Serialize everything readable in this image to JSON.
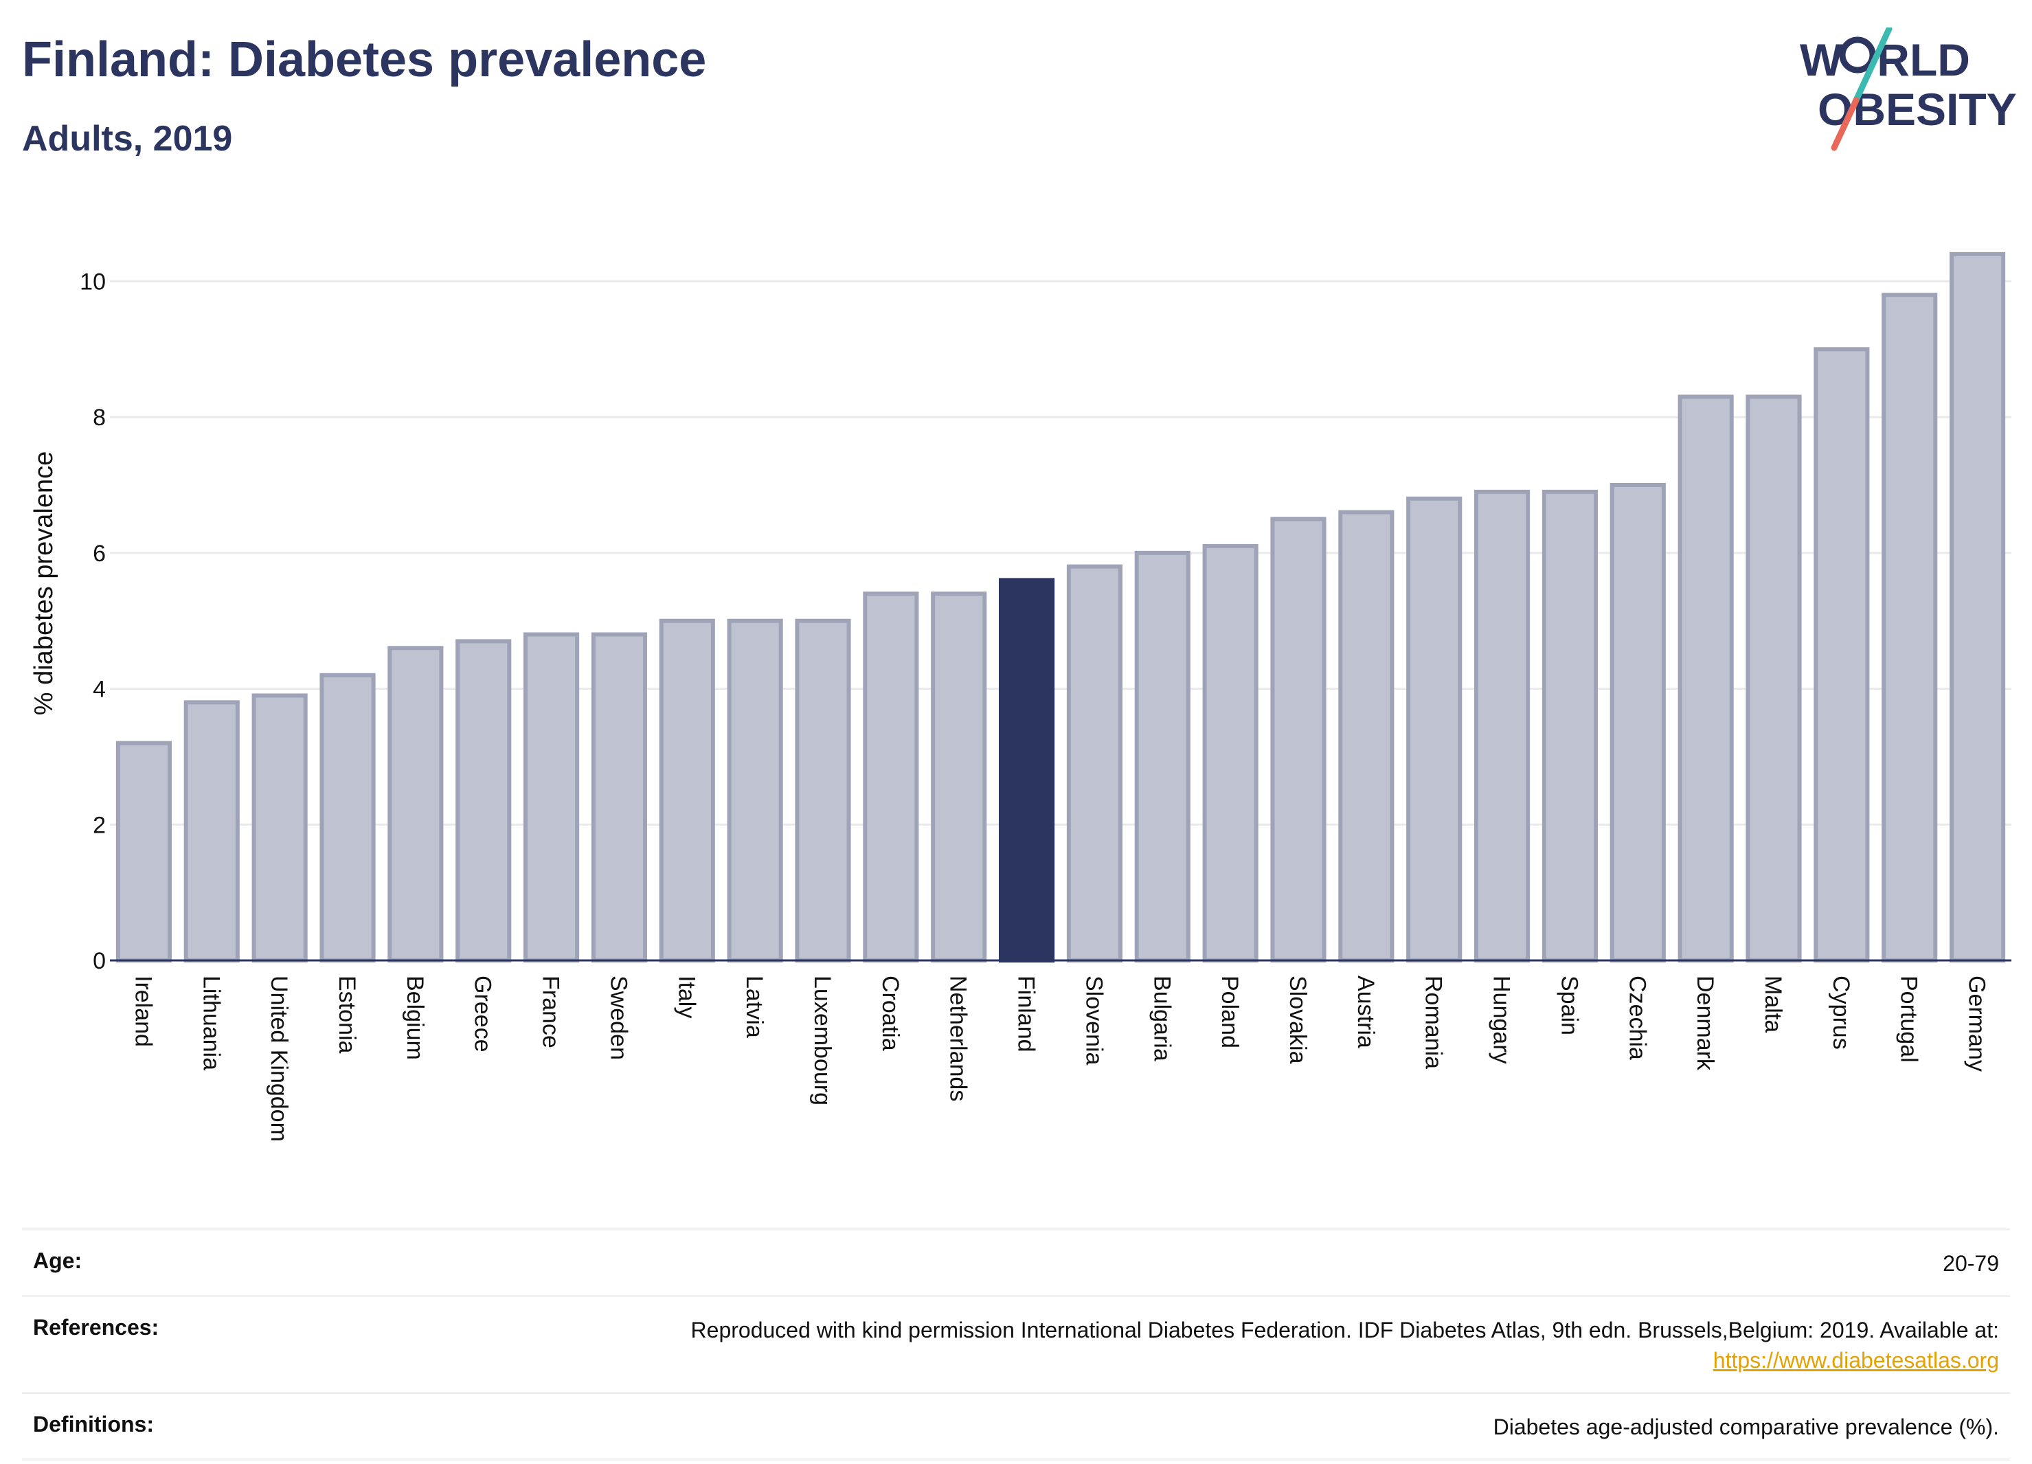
{
  "header": {
    "title": "Finland: Diabetes prevalence",
    "subtitle": "Adults, 2019"
  },
  "logo": {
    "line1_a": "W",
    "line1_b": "RLD",
    "line2_a": "O",
    "line2_b": "BESITY"
  },
  "colors": {
    "bar": "#bfc2d0",
    "bar_border": "#9ea3b8",
    "highlight": "#2b3560",
    "logo_teal": "#3cb9b0",
    "logo_red": "#e8695a"
  },
  "chart_data": {
    "type": "bar",
    "ylabel": "% diabetes prevalence",
    "xlabel": "",
    "ylim": [
      0,
      10.5
    ],
    "yticks": [
      0,
      2,
      4,
      6,
      8,
      10
    ],
    "grid": true,
    "highlight": "Finland",
    "categories": [
      "Ireland",
      "Lithuania",
      "United Kingdom",
      "Estonia",
      "Belgium",
      "Greece",
      "France",
      "Sweden",
      "Italy",
      "Latvia",
      "Luxembourg",
      "Croatia",
      "Netherlands",
      "Finland",
      "Slovenia",
      "Bulgaria",
      "Poland",
      "Slovakia",
      "Austria",
      "Romania",
      "Hungary",
      "Spain",
      "Czechia",
      "Denmark",
      "Malta",
      "Cyprus",
      "Portugal",
      "Germany"
    ],
    "values": [
      3.2,
      3.8,
      3.9,
      4.2,
      4.6,
      4.7,
      4.8,
      4.8,
      5.0,
      5.0,
      5.0,
      5.4,
      5.4,
      5.6,
      5.8,
      6.0,
      6.1,
      6.5,
      6.6,
      6.8,
      6.9,
      6.9,
      7.0,
      8.3,
      8.3,
      9.0,
      9.8,
      10.4
    ]
  },
  "info": {
    "age_label": "Age:",
    "age_value": "20-79",
    "references_label": "References:",
    "references_value": "Reproduced with kind permission International Diabetes Federation. IDF Diabetes Atlas, 9th edn. Brussels,Belgium: 2019. Available at:",
    "references_link": "https://www.diabetesatlas.org",
    "definitions_label": "Definitions:",
    "definitions_value": "Diabetes age-adjusted comparative prevalence (%)."
  }
}
